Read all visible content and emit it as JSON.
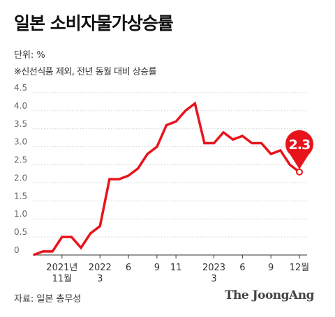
{
  "title": "일본 소비자물가상승률",
  "unit_label": "단위: %",
  "note": "※신선식품 제외, 전년 동월 대비 상승률",
  "source": "자료: 일본 총무성",
  "brand": "The JoongAng",
  "colors": {
    "line": "#e8141b",
    "grid": "#cccccc",
    "axis": "#333333",
    "text": "#666666"
  },
  "chart_data": {
    "type": "line",
    "title": "일본 소비자물가상승률",
    "ylabel": "단위: %",
    "ylim": [
      0,
      4.5
    ],
    "yticks": [
      "0",
      "0.5",
      "1.0",
      "1.5",
      "2.0",
      "2.5",
      "3.0",
      "3.5",
      "4.0",
      "4.5"
    ],
    "x": [
      "2021-08",
      "2021-09",
      "2021-10",
      "2021-11",
      "2021-12",
      "2022-01",
      "2022-02",
      "2022-03",
      "2022-04",
      "2022-05",
      "2022-06",
      "2022-07",
      "2022-08",
      "2022-09",
      "2022-10",
      "2022-11",
      "2022-12",
      "2023-01",
      "2023-02",
      "2023-03",
      "2023-04",
      "2023-05",
      "2023-06",
      "2023-07",
      "2023-08",
      "2023-09",
      "2023-10",
      "2023-11",
      "2023-12"
    ],
    "xticks": [
      {
        "x": "2021-11",
        "line1": "2021년",
        "line2": "11월"
      },
      {
        "x": "2022-03",
        "line1": "2022",
        "line2": "3"
      },
      {
        "x": "2022-06",
        "line1": "6",
        "line2": ""
      },
      {
        "x": "2022-09",
        "line1": "9",
        "line2": ""
      },
      {
        "x": "2022-11",
        "line1": "11",
        "line2": ""
      },
      {
        "x": "2023-03",
        "line1": "2023",
        "line2": "3"
      },
      {
        "x": "2023-06",
        "line1": "6",
        "line2": ""
      },
      {
        "x": "2023-09",
        "line1": "9",
        "line2": ""
      },
      {
        "x": "2023-12",
        "line1": "12월",
        "line2": ""
      }
    ],
    "series": [
      {
        "values": [
          0.0,
          0.1,
          0.1,
          0.5,
          0.5,
          0.2,
          0.6,
          0.8,
          2.1,
          2.1,
          2.2,
          2.4,
          2.8,
          3.0,
          3.6,
          3.7,
          4.0,
          4.2,
          3.1,
          3.1,
          3.4,
          3.2,
          3.3,
          3.1,
          3.1,
          2.8,
          2.9,
          2.5,
          2.3
        ]
      }
    ],
    "callout": {
      "label": "2.3",
      "x": "2023-12",
      "value": 2.3
    },
    "grid": true
  }
}
